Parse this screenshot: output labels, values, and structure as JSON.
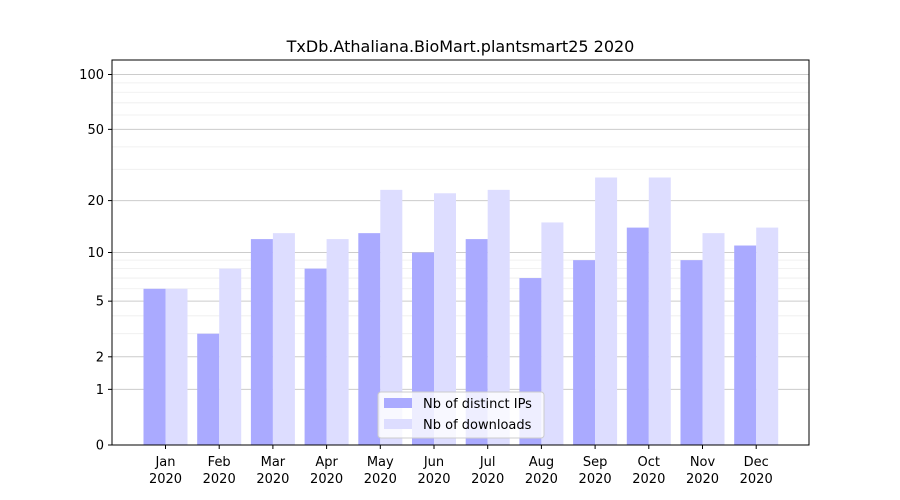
{
  "chart_data": {
    "type": "bar",
    "title": "TxDb.Athaliana.BioMart.plantsmart25 2020",
    "xlabel": "",
    "ylabel": "",
    "yscale": "log(1+y)",
    "ylim": [
      0,
      120
    ],
    "yticks": [
      0,
      1,
      2,
      5,
      10,
      20,
      50,
      100
    ],
    "grid": "horizontal",
    "legend_position": "bottom-center",
    "categories": [
      [
        "Jan",
        "2020"
      ],
      [
        "Feb",
        "2020"
      ],
      [
        "Mar",
        "2020"
      ],
      [
        "Apr",
        "2020"
      ],
      [
        "May",
        "2020"
      ],
      [
        "Jun",
        "2020"
      ],
      [
        "Jul",
        "2020"
      ],
      [
        "Aug",
        "2020"
      ],
      [
        "Sep",
        "2020"
      ],
      [
        "Oct",
        "2020"
      ],
      [
        "Nov",
        "2020"
      ],
      [
        "Dec",
        "2020"
      ]
    ],
    "series": [
      {
        "name": "Nb of distinct IPs",
        "color": "#aaaaff",
        "values": [
          6,
          3,
          12,
          8,
          13,
          10,
          12,
          7,
          9,
          14,
          9,
          11
        ]
      },
      {
        "name": "Nb of downloads",
        "color": "#ddddff",
        "values": [
          6,
          8,
          13,
          12,
          23,
          22,
          23,
          15,
          27,
          27,
          13,
          14
        ]
      }
    ]
  }
}
